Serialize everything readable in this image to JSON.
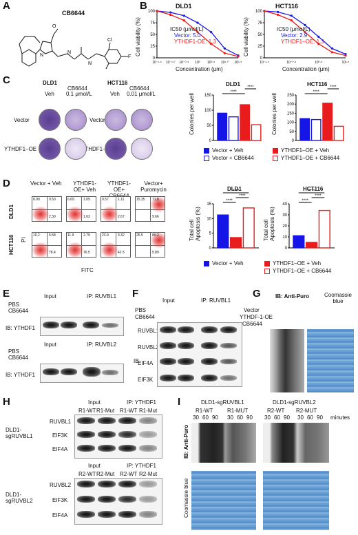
{
  "panels": {
    "A": "A",
    "B": "B",
    "C": "C",
    "D": "D",
    "E": "E",
    "F": "F",
    "G": "G",
    "H": "H",
    "I": "I"
  },
  "colors": {
    "blue": "#1515e8",
    "red": "#e81c1c",
    "white": "#ffffff"
  },
  "panelA": {
    "compound": "CB6644"
  },
  "panelB": {
    "dld1": {
      "title": "DLD1",
      "ic50_title": "IC50 (μmol/L)",
      "vector": "Vector: 5.0",
      "oe": "YTHDF1-OE: 1.3"
    },
    "hct116": {
      "title": "HCT116",
      "ic50_title": "IC50 (μmol/L)",
      "vector": "Vector: 2.9",
      "oe": "YTHDF1–OE: 1.3"
    },
    "ylabel": "Cell viability (%)",
    "xlabel": "Concentration (μm)",
    "yticks": [
      "100",
      "75",
      "50",
      "25",
      "0"
    ],
    "dld1_xticks": [
      "10⁻¹·⁵",
      "10⁻¹·⁰",
      "10⁻⁰·⁵",
      "10⁰",
      "10⁰·⁵",
      "10¹·⁰",
      "10¹·⁵"
    ],
    "hct_xticks": [
      "10⁻¹·⁵",
      "10⁻⁰·⁵",
      "10⁰·⁵",
      "10¹·⁵"
    ]
  },
  "panelC": {
    "dld1_title": "DLD1",
    "hct_title": "HCT116",
    "veh": "Veh",
    "cb": "CB6644",
    "dld1_dose": "0.1 μmol/L",
    "hct_dose": "0.01 μmol/L",
    "row1": "Vector",
    "row2": "YTHDF1–OE",
    "ylabel": "Colonies per well",
    "sig": "****",
    "legend": [
      "Vector + Veh",
      "Vector + CB6644",
      "YTHDF1–OE + Veh",
      "YTHDF1–OE + CB6644"
    ]
  },
  "panelD": {
    "cols": [
      "Vector + Veh",
      "YTHDF1-OE+ Veh",
      "YTHDF1-OE+ CB6644",
      "Vector+ Puromycin"
    ],
    "rows": [
      "DLD1",
      "HCT116"
    ],
    "xaxis": "FITC",
    "yaxis": "PI",
    "quadrants_dld1": [
      [
        "8.90",
        "0.50",
        "2.30"
      ],
      [
        "6.69",
        "1.09",
        "1.63"
      ],
      [
        "9.57",
        "1.11",
        "2.67"
      ],
      [
        "15.35",
        "71.8",
        "9.66"
      ]
    ],
    "quadrants_hct": [
      [
        "10.2",
        "5.58",
        "78.4"
      ],
      [
        "11.9",
        "2.79",
        "76.5"
      ],
      [
        "23.9",
        "3.32",
        "42.5"
      ],
      [
        "25.5",
        "89.2",
        "5.89"
      ]
    ],
    "ylabel": "Total cell Apoptosis (%)",
    "sig": "****",
    "legend": [
      "Vector + Veh",
      "YTHDF1–OE + Veh",
      "YTHDF1–OE + CB6644"
    ]
  },
  "panelE": {
    "input": "Input",
    "ip1": "IP: RUVBL1",
    "ip2": "IP: RUVBL2",
    "pbs": "PBS",
    "cb": "CB6644",
    "ib": "IB: YTHDF1",
    "plus": "+",
    "minus": "–"
  },
  "panelF": {
    "input": "Input",
    "ip": "IP: RUVBL1",
    "pbs": "PBS",
    "cb": "CB6644",
    "ib": "IB",
    "rows": [
      "RUVBL1",
      "RUVBL2",
      "EIF4A",
      "EIF3K"
    ]
  },
  "panelG": {
    "ib": "IB: Anti-Puro",
    "coomassie": "Coomassie blue",
    "rows": [
      "Vector",
      "YTHDF-1-OE",
      "CB6644"
    ]
  },
  "panelH": {
    "input": "Input",
    "ip": "IP: YTHDF1",
    "top_cols": [
      "R1-WT",
      "R1-Mut",
      "R1-WT",
      "R1-Mut"
    ],
    "bot_cols": [
      "R2-WT",
      "R2-Mut",
      "R2-WT",
      "R2-Mut"
    ],
    "top_label": "DLD1- sgRUVBL1",
    "bot_label": "DLD1- sgRUVBL2",
    "top_rows": [
      "RUVBL1",
      "EIF3K",
      "EIF4A"
    ],
    "bot_rows": [
      "RUVBL2",
      "EIF3K",
      "EIF4A"
    ]
  },
  "panelI": {
    "left_title": "DLD1-sgRUVBL1",
    "right_title": "DLD1-sgRUVBL2",
    "groups": [
      "R1-WT",
      "R1-MUT",
      "R2-WT",
      "R2-MUT"
    ],
    "times": [
      "30",
      "60",
      "90"
    ],
    "minutes": "minutes",
    "ib": "IB: Anti-Puro",
    "coomassie": "Coomassie blue"
  },
  "chart_data": [
    {
      "type": "line",
      "title": "DLD1",
      "xlabel": "Concentration (μm)",
      "ylabel": "Cell viability (%)",
      "ylim": [
        0,
        100
      ],
      "series": [
        {
          "name": "Vector: 5.0",
          "x": [
            -1.5,
            -1,
            -0.5,
            0,
            0.5,
            1,
            1.5
          ],
          "values": [
            100,
            97,
            90,
            75,
            55,
            20,
            5
          ]
        },
        {
          "name": "YTHDF1-OE: 1.3",
          "x": [
            -1.5,
            -1,
            -0.5,
            0,
            0.5,
            1,
            1.5
          ],
          "values": [
            100,
            92,
            80,
            55,
            30,
            10,
            3
          ]
        }
      ]
    },
    {
      "type": "line",
      "title": "HCT116",
      "xlabel": "Concentration (μm)",
      "ylabel": "Cell viability (%)",
      "ylim": [
        0,
        100
      ],
      "series": [
        {
          "name": "Vector: 2.9",
          "x": [
            -1.5,
            -1,
            -0.5,
            0,
            0.5,
            1,
            1.5
          ],
          "values": [
            100,
            98,
            90,
            70,
            45,
            20,
            8
          ]
        },
        {
          "name": "YTHDF1–OE: 1.3",
          "x": [
            -1.5,
            -1,
            -0.5,
            0,
            0.5,
            1,
            1.5
          ],
          "values": [
            100,
            92,
            80,
            55,
            30,
            12,
            5
          ]
        }
      ]
    },
    {
      "type": "bar",
      "title": "DLD1",
      "ylabel": "Colonies per well",
      "ylim": [
        0,
        150
      ],
      "categories": [
        "Vector + Veh",
        "Vector + CB6644",
        "YTHDF1–OE + Veh",
        "YTHDF1–OE + CB6644"
      ],
      "values": [
        90,
        78,
        118,
        52
      ]
    },
    {
      "type": "bar",
      "title": "HCT116",
      "ylabel": "Colonies per well",
      "ylim": [
        0,
        250
      ],
      "categories": [
        "Vector + Veh",
        "Vector + CB6644",
        "YTHDF1–OE + Veh",
        "YTHDF1–OE + CB6644"
      ],
      "values": [
        120,
        115,
        205,
        78
      ]
    },
    {
      "type": "bar",
      "title": "DLD1",
      "ylabel": "Total cell Apoptosis (%)",
      "ylim": [
        0,
        15
      ],
      "categories": [
        "Vector + Veh",
        "YTHDF1–OE + Veh",
        "YTHDF1–OE + CB6644"
      ],
      "values": [
        11.2,
        3.5,
        13.6
      ]
    },
    {
      "type": "bar",
      "title": "HCT116",
      "ylabel": "Total cell Apoptosis (%)",
      "ylim": [
        0,
        40
      ],
      "categories": [
        "Vector + Veh",
        "YTHDF1–OE + Veh",
        "YTHDF1–OE + CB6644"
      ],
      "values": [
        11,
        5,
        34
      ]
    }
  ]
}
